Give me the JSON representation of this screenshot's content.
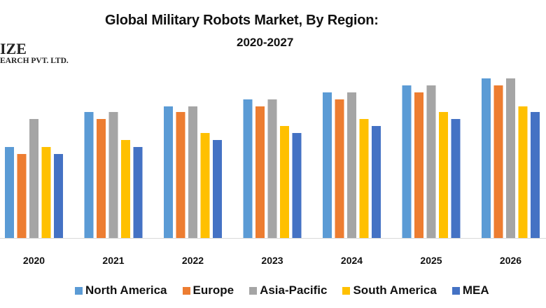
{
  "chart_data": {
    "type": "bar",
    "title": "Global Military Robots Market, By Region:",
    "subtitle": "2020-2027",
    "xlabel": "",
    "ylabel": "",
    "y_axis_shown": false,
    "grid": false,
    "legend_position": "bottom",
    "categories": [
      "2020",
      "2021",
      "2022",
      "2023",
      "2024",
      "2025",
      "2026"
    ],
    "ylim": [
      0,
      25
    ],
    "series": [
      {
        "name": "North America",
        "color": "#5B9BD5",
        "values": [
          13,
          18,
          18.8,
          19.8,
          20.8,
          21.8,
          22.8
        ]
      },
      {
        "name": "Europe",
        "color": "#ED7D31",
        "values": [
          12,
          17,
          18,
          18.8,
          19.8,
          20.8,
          21.8
        ]
      },
      {
        "name": "Asia-Pacific",
        "color": "#A5A5A5",
        "values": [
          17,
          18,
          18.8,
          19.8,
          20.8,
          21.8,
          22.8
        ]
      },
      {
        "name": "South America",
        "color": "#FFC000",
        "values": [
          13,
          14,
          15,
          16,
          17,
          18,
          18.8
        ]
      },
      {
        "name": "MEA",
        "color": "#4472C4",
        "values": [
          12,
          13,
          14,
          15,
          16,
          17,
          18
        ]
      }
    ]
  },
  "logo": {
    "line1": "IZE",
    "line2": "EARCH PVT. LTD."
  }
}
